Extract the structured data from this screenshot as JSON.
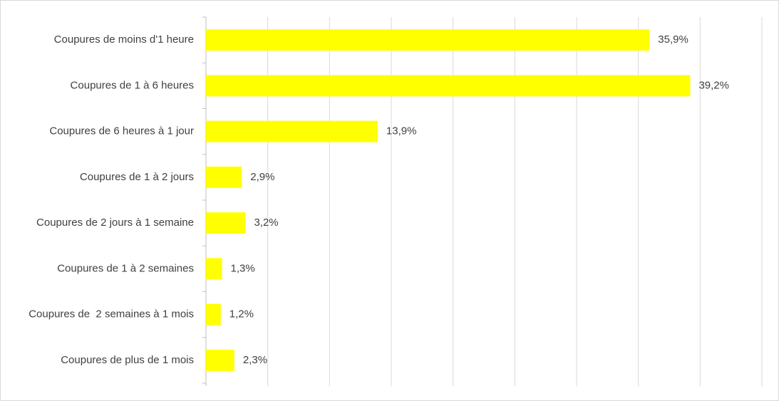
{
  "chart_data": {
    "type": "barh",
    "categories": [
      "Coupures de moins d'1 heure",
      "Coupures de 1 à 6 heures",
      "Coupures de 6 heures à 1 jour",
      "Coupures de 1 à 2 jours",
      "Coupures de 2 jours à 1 semaine",
      "Coupures de 1 à 2 semaines",
      "Coupures de  2 semaines à 1 mois",
      "Coupures de plus de 1 mois"
    ],
    "values": [
      35.9,
      39.2,
      13.9,
      2.9,
      3.2,
      1.3,
      1.2,
      2.3
    ],
    "value_labels": [
      "35,9%",
      "39,2%",
      "13,9%",
      "2,9%",
      "3,2%",
      "1,3%",
      "1,2%",
      "2,3%"
    ],
    "color": "#ffff00",
    "xlim": [
      0,
      45
    ],
    "xticks": [
      0,
      5,
      10,
      15,
      20,
      25,
      30,
      35,
      40,
      45
    ],
    "grid": true
  }
}
